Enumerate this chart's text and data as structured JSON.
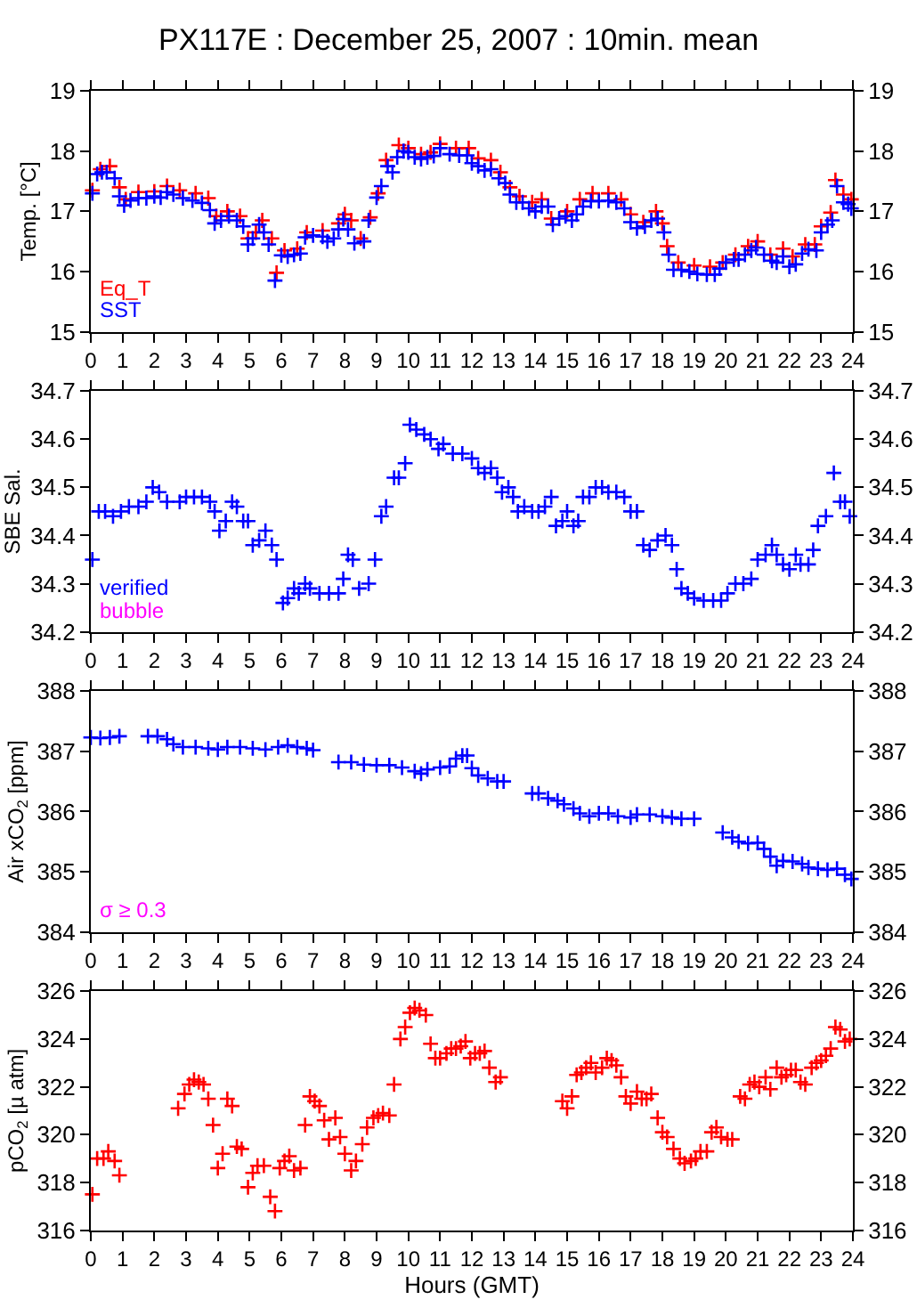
{
  "chart_data": [
    {
      "type": "scatter",
      "title": "PX117E : December 25, 2007 : 10min. mean",
      "ylabel": "Temp. [°C]",
      "xlim": [
        0,
        24
      ],
      "xticks": [
        0,
        1,
        2,
        3,
        4,
        5,
        6,
        7,
        8,
        9,
        10,
        11,
        12,
        13,
        14,
        15,
        16,
        17,
        18,
        19,
        20,
        21,
        22,
        23,
        24
      ],
      "ylim": [
        15,
        19
      ],
      "yticks": [
        15,
        16,
        17,
        18,
        19
      ],
      "y2lim": [
        15,
        19
      ],
      "y2ticks": [
        15,
        16,
        17,
        18,
        19
      ],
      "marker": "cross",
      "series": [
        {
          "name": "Eq_T",
          "color": "#ff0000",
          "x": [
            0.05,
            0.3,
            0.6,
            0.9,
            1.1,
            1.5,
            2.0,
            2.4,
            2.8,
            3.3,
            3.7,
            3.95,
            4.3,
            4.7,
            4.95,
            5.2,
            5.4,
            5.7,
            5.85,
            6.1,
            6.5,
            6.8,
            7.3,
            7.8,
            8.0,
            8.2,
            8.5,
            8.8,
            9.05,
            9.3,
            9.7,
            10.0,
            10.4,
            10.7,
            11.0,
            11.5,
            11.9,
            12.2,
            12.6,
            12.9,
            13.2,
            13.5,
            13.9,
            14.2,
            14.5,
            15.0,
            15.4,
            15.8,
            16.3,
            16.7,
            17.0,
            17.4,
            17.8,
            18.0,
            18.15,
            18.5,
            19.0,
            19.5,
            19.9,
            20.3,
            20.7,
            21.0,
            21.4,
            21.8,
            22.1,
            22.5,
            22.8,
            23.0,
            23.3,
            23.45,
            23.7,
            23.95
          ],
          "values": [
            17.35,
            17.7,
            17.75,
            17.4,
            17.2,
            17.32,
            17.33,
            17.42,
            17.35,
            17.3,
            17.22,
            16.92,
            17.0,
            16.92,
            16.55,
            16.65,
            16.85,
            16.55,
            15.98,
            16.35,
            16.38,
            16.65,
            16.68,
            16.8,
            16.95,
            16.85,
            16.55,
            16.9,
            17.3,
            17.85,
            18.1,
            18.05,
            17.95,
            17.98,
            18.12,
            18.05,
            18.05,
            17.88,
            17.85,
            17.65,
            17.4,
            17.25,
            17.15,
            17.2,
            16.88,
            17.0,
            17.2,
            17.3,
            17.3,
            17.2,
            16.95,
            16.82,
            17.0,
            16.8,
            16.42,
            16.15,
            16.1,
            16.08,
            16.15,
            16.28,
            16.42,
            16.5,
            16.28,
            16.38,
            16.25,
            16.45,
            16.45,
            16.75,
            16.98,
            17.52,
            17.28,
            17.2
          ]
        },
        {
          "name": "SST",
          "color": "#0000ff",
          "x": [
            0.05,
            0.2,
            0.35,
            0.5,
            0.75,
            0.9,
            1.05,
            1.25,
            1.5,
            1.75,
            2.0,
            2.2,
            2.4,
            2.6,
            2.9,
            3.2,
            3.5,
            3.75,
            3.9,
            4.1,
            4.35,
            4.6,
            4.8,
            4.95,
            5.1,
            5.3,
            5.45,
            5.6,
            5.8,
            6.0,
            6.2,
            6.4,
            6.6,
            6.75,
            7.0,
            7.3,
            7.45,
            7.65,
            7.8,
            7.95,
            8.1,
            8.3,
            8.6,
            8.75,
            9.0,
            9.15,
            9.35,
            9.5,
            9.65,
            9.85,
            10.0,
            10.2,
            10.4,
            10.6,
            10.8,
            11.0,
            11.3,
            11.6,
            11.85,
            12.0,
            12.2,
            12.4,
            12.6,
            12.85,
            13.05,
            13.2,
            13.4,
            13.6,
            13.8,
            14.0,
            14.2,
            14.4,
            14.55,
            14.75,
            14.95,
            15.15,
            15.3,
            15.5,
            15.75,
            16.0,
            16.3,
            16.55,
            16.8,
            17.0,
            17.2,
            17.45,
            17.65,
            17.85,
            18.05,
            18.2,
            18.35,
            18.6,
            18.85,
            19.1,
            19.4,
            19.65,
            19.8,
            20.0,
            20.25,
            20.4,
            20.6,
            20.8,
            20.95,
            21.2,
            21.45,
            21.6,
            21.8,
            22.0,
            22.2,
            22.4,
            22.6,
            22.85,
            23.0,
            23.2,
            23.35,
            23.5,
            23.7,
            23.85,
            23.95
          ],
          "values": [
            17.3,
            17.62,
            17.65,
            17.65,
            17.55,
            17.25,
            17.1,
            17.18,
            17.22,
            17.22,
            17.25,
            17.23,
            17.32,
            17.28,
            17.22,
            17.18,
            17.14,
            17.02,
            16.8,
            16.85,
            16.92,
            16.85,
            16.75,
            16.45,
            16.55,
            16.78,
            16.65,
            16.45,
            15.85,
            16.27,
            16.25,
            16.28,
            16.3,
            16.57,
            16.6,
            16.58,
            16.5,
            16.55,
            16.7,
            16.87,
            16.7,
            16.47,
            16.5,
            16.85,
            17.23,
            17.42,
            17.75,
            17.65,
            17.9,
            18.0,
            17.98,
            17.9,
            17.87,
            17.9,
            17.92,
            18.05,
            17.95,
            17.93,
            17.93,
            17.8,
            17.75,
            17.68,
            17.7,
            17.55,
            17.47,
            17.28,
            17.15,
            17.15,
            17.05,
            17.0,
            17.08,
            17.08,
            16.78,
            16.88,
            16.92,
            16.85,
            16.95,
            17.08,
            17.17,
            17.17,
            17.18,
            17.15,
            17.05,
            16.82,
            16.72,
            16.75,
            16.85,
            16.88,
            16.65,
            16.28,
            16.03,
            16.03,
            16.0,
            15.96,
            15.95,
            15.95,
            16.05,
            16.15,
            16.2,
            16.2,
            16.28,
            16.35,
            16.4,
            16.28,
            16.18,
            16.15,
            16.25,
            16.08,
            16.12,
            16.3,
            16.37,
            16.35,
            16.65,
            16.78,
            16.85,
            17.42,
            17.15,
            17.12,
            17.05
          ]
        }
      ]
    },
    {
      "type": "scatter",
      "ylabel": "SBE Sal.",
      "xlim": [
        0,
        24
      ],
      "xticks": [
        0,
        1,
        2,
        3,
        4,
        5,
        6,
        7,
        8,
        9,
        10,
        11,
        12,
        13,
        14,
        15,
        16,
        17,
        18,
        19,
        20,
        21,
        22,
        23,
        24
      ],
      "ylim": [
        34.2,
        34.7
      ],
      "yticks": [
        34.2,
        34.3,
        34.4,
        34.5,
        34.6,
        34.7
      ],
      "y2lim": [
        34.2,
        34.7
      ],
      "y2ticks": [
        34.2,
        34.3,
        34.4,
        34.5,
        34.6,
        34.7
      ],
      "marker": "cross",
      "annotations": [
        "bubble"
      ],
      "series": [
        {
          "name": "verified",
          "color": "#0000ff",
          "x": [
            0.05,
            0.25,
            0.45,
            0.7,
            0.95,
            1.2,
            1.5,
            1.75,
            1.95,
            2.15,
            2.4,
            2.8,
            3.0,
            3.25,
            3.5,
            3.75,
            3.9,
            4.05,
            4.25,
            4.45,
            4.6,
            4.8,
            4.95,
            5.1,
            5.3,
            5.5,
            5.7,
            5.85,
            6.05,
            6.2,
            6.4,
            6.55,
            6.75,
            6.9,
            7.2,
            7.5,
            7.8,
            7.95,
            8.1,
            8.25,
            8.45,
            8.75,
            8.95,
            9.15,
            9.3,
            9.55,
            9.7,
            9.9,
            10.05,
            10.25,
            10.5,
            10.7,
            10.95,
            11.1,
            11.4,
            11.7,
            12.0,
            12.2,
            12.4,
            12.6,
            12.8,
            12.95,
            13.15,
            13.3,
            13.45,
            13.65,
            13.9,
            14.1,
            14.3,
            14.5,
            14.65,
            14.85,
            15.0,
            15.2,
            15.35,
            15.5,
            15.7,
            15.9,
            16.1,
            16.3,
            16.55,
            16.8,
            17.0,
            17.2,
            17.4,
            17.6,
            17.85,
            18.1,
            18.3,
            18.45,
            18.6,
            18.8,
            19.0,
            19.3,
            19.6,
            19.85,
            20.05,
            20.3,
            20.55,
            20.8,
            21.0,
            21.25,
            21.45,
            21.6,
            21.8,
            22.0,
            22.2,
            22.35,
            22.6,
            22.75,
            22.9,
            23.15,
            23.4,
            23.6,
            23.75,
            23.9
          ],
          "values": [
            34.35,
            34.45,
            34.45,
            34.44,
            34.45,
            34.46,
            34.46,
            34.47,
            34.5,
            34.49,
            34.47,
            34.47,
            34.48,
            34.48,
            34.48,
            34.47,
            34.45,
            34.41,
            34.43,
            34.47,
            34.46,
            34.43,
            34.43,
            34.38,
            34.39,
            34.41,
            34.38,
            34.35,
            34.26,
            34.27,
            34.29,
            34.28,
            34.3,
            34.29,
            34.28,
            34.28,
            34.28,
            34.31,
            34.36,
            34.35,
            34.29,
            34.3,
            34.35,
            34.44,
            34.46,
            34.52,
            34.52,
            34.55,
            34.63,
            34.62,
            34.61,
            34.6,
            34.58,
            34.59,
            34.57,
            34.57,
            34.56,
            34.54,
            34.53,
            34.54,
            34.52,
            34.49,
            34.5,
            34.48,
            34.45,
            34.46,
            34.45,
            34.45,
            34.46,
            34.48,
            34.42,
            34.43,
            34.45,
            34.42,
            34.43,
            34.48,
            34.48,
            34.5,
            34.5,
            34.49,
            34.49,
            34.48,
            34.45,
            34.45,
            34.38,
            34.37,
            34.39,
            34.4,
            34.38,
            34.33,
            34.29,
            34.28,
            34.27,
            34.265,
            34.265,
            34.265,
            34.28,
            34.3,
            34.3,
            34.31,
            34.35,
            34.36,
            34.38,
            34.36,
            34.34,
            34.33,
            34.36,
            34.34,
            34.34,
            34.37,
            34.42,
            34.44,
            34.53,
            34.47,
            34.47,
            34.44
          ]
        }
      ]
    },
    {
      "type": "scatter",
      "ylabel": "Air xCO$_{2}$ [ppm]",
      "xlim": [
        0,
        24
      ],
      "xticks": [
        0,
        1,
        2,
        3,
        4,
        5,
        6,
        7,
        8,
        9,
        10,
        11,
        12,
        13,
        14,
        15,
        16,
        17,
        18,
        19,
        20,
        21,
        22,
        23,
        24
      ],
      "ylim": [
        384,
        388
      ],
      "yticks": [
        384,
        385,
        386,
        387,
        388
      ],
      "y2lim": [
        384,
        388
      ],
      "y2ticks": [
        384,
        385,
        386,
        387,
        388
      ],
      "marker": "cross",
      "annotations": [
        "σ ≥ 0.3"
      ],
      "series": [
        {
          "color": "#0000ff",
          "x": [
            0.0,
            0.3,
            0.6,
            0.9,
            1.8,
            2.1,
            2.4,
            2.6,
            2.9,
            3.3,
            3.7,
            4.0,
            4.3,
            4.7,
            5.1,
            5.5,
            5.9,
            6.2,
            6.5,
            6.8,
            7.0,
            7.8,
            8.2,
            8.6,
            9.0,
            9.4,
            9.8,
            10.2,
            10.4,
            10.6,
            11.0,
            11.3,
            11.5,
            11.7,
            11.85,
            12.0,
            12.2,
            12.5,
            12.8,
            13.0,
            13.9,
            14.1,
            14.4,
            14.7,
            14.9,
            15.2,
            15.4,
            15.7,
            16.0,
            16.3,
            16.6,
            17.0,
            17.2,
            17.6,
            18.0,
            18.3,
            18.6,
            19.0,
            19.9,
            20.2,
            20.4,
            20.7,
            21.0,
            21.2,
            21.4,
            21.6,
            21.8,
            22.1,
            22.4,
            22.6,
            22.9,
            23.2,
            23.5,
            23.75,
            23.95
          ],
          "values": [
            387.23,
            387.22,
            387.23,
            387.25,
            387.25,
            387.25,
            387.2,
            387.12,
            387.07,
            387.07,
            387.05,
            387.03,
            387.07,
            387.07,
            387.05,
            387.03,
            387.07,
            387.1,
            387.07,
            387.05,
            387.02,
            386.82,
            386.82,
            386.78,
            386.77,
            386.77,
            386.73,
            386.67,
            386.63,
            386.7,
            386.73,
            386.75,
            386.88,
            386.93,
            386.93,
            386.72,
            386.6,
            386.55,
            386.5,
            386.5,
            386.3,
            386.3,
            386.22,
            386.18,
            386.12,
            386.05,
            385.97,
            385.92,
            385.97,
            385.97,
            385.92,
            385.9,
            385.95,
            385.95,
            385.92,
            385.9,
            385.88,
            385.88,
            385.65,
            385.57,
            385.5,
            385.47,
            385.48,
            385.38,
            385.25,
            385.1,
            385.18,
            385.17,
            385.13,
            385.07,
            385.05,
            385.03,
            385.05,
            384.95,
            384.88
          ]
        }
      ]
    },
    {
      "type": "scatter",
      "xlabel": "Hours (GMT)",
      "ylabel": "pCO$_{2}$ [µ atm]",
      "xlim": [
        0,
        24
      ],
      "xticks": [
        0,
        1,
        2,
        3,
        4,
        5,
        6,
        7,
        8,
        9,
        10,
        11,
        12,
        13,
        14,
        15,
        16,
        17,
        18,
        19,
        20,
        21,
        22,
        23,
        24
      ],
      "ylim": [
        316,
        326
      ],
      "yticks": [
        316,
        318,
        320,
        322,
        324,
        326
      ],
      "y2lim": [
        316,
        326
      ],
      "y2ticks": [
        316,
        318,
        320,
        322,
        324,
        326
      ],
      "marker": "cross",
      "series": [
        {
          "color": "#ff0000",
          "x": [
            0.05,
            0.2,
            0.4,
            0.55,
            0.75,
            0.9,
            2.75,
            2.95,
            3.1,
            3.25,
            3.4,
            3.55,
            3.7,
            3.85,
            4.0,
            4.15,
            4.3,
            4.45,
            4.6,
            4.75,
            4.95,
            5.1,
            5.25,
            5.45,
            5.65,
            5.8,
            5.95,
            6.1,
            6.25,
            6.4,
            6.6,
            6.75,
            6.9,
            7.05,
            7.2,
            7.35,
            7.5,
            7.7,
            7.85,
            8.0,
            8.2,
            8.35,
            8.55,
            8.7,
            8.9,
            9.05,
            9.2,
            9.4,
            9.55,
            9.75,
            9.9,
            10.05,
            10.2,
            10.35,
            10.55,
            10.7,
            10.85,
            11.0,
            11.2,
            11.35,
            11.5,
            11.65,
            11.8,
            11.95,
            12.1,
            12.25,
            12.4,
            12.55,
            12.75,
            12.9,
            14.85,
            15.0,
            15.15,
            15.3,
            15.45,
            15.6,
            15.75,
            15.9,
            16.1,
            16.25,
            16.4,
            16.55,
            16.7,
            16.85,
            17.0,
            17.2,
            17.35,
            17.5,
            17.65,
            17.85,
            18.0,
            18.15,
            18.35,
            18.55,
            18.7,
            18.9,
            19.05,
            19.2,
            19.4,
            19.55,
            19.7,
            19.85,
            20.05,
            20.2,
            20.45,
            20.6,
            20.75,
            20.9,
            21.05,
            21.25,
            21.4,
            21.6,
            21.75,
            21.9,
            22.05,
            22.2,
            22.35,
            22.5,
            22.7,
            22.85,
            23.0,
            23.15,
            23.3,
            23.45,
            23.6,
            23.75,
            23.9
          ],
          "values": [
            317.5,
            319.0,
            319.0,
            319.3,
            318.9,
            318.3,
            321.1,
            321.7,
            322.1,
            322.3,
            322.2,
            322.1,
            321.5,
            320.4,
            318.6,
            319.2,
            321.5,
            321.2,
            319.5,
            319.4,
            317.8,
            318.4,
            318.7,
            318.7,
            317.4,
            316.8,
            318.6,
            318.9,
            319.1,
            318.5,
            318.6,
            320.4,
            321.6,
            321.4,
            321.2,
            320.6,
            319.8,
            320.7,
            319.9,
            319.2,
            318.5,
            318.9,
            319.6,
            320.3,
            320.7,
            320.8,
            320.9,
            320.8,
            322.1,
            324.0,
            324.5,
            325.1,
            325.3,
            325.2,
            325.0,
            323.8,
            323.2,
            323.2,
            323.4,
            323.6,
            323.6,
            323.7,
            323.9,
            323.2,
            323.4,
            323.4,
            323.5,
            322.8,
            322.2,
            322.4,
            321.4,
            321.1,
            321.6,
            322.5,
            322.6,
            322.8,
            323.0,
            322.6,
            322.8,
            323.2,
            323.1,
            322.9,
            322.4,
            321.6,
            321.3,
            321.8,
            321.5,
            321.5,
            321.7,
            320.7,
            320.1,
            319.9,
            319.4,
            319.0,
            318.8,
            318.9,
            319.0,
            319.3,
            319.3,
            320.1,
            320.3,
            319.9,
            319.8,
            319.8,
            321.6,
            321.5,
            322.1,
            322.2,
            322.0,
            322.4,
            321.9,
            322.8,
            322.4,
            322.5,
            322.7,
            322.7,
            322.2,
            322.1,
            322.8,
            323.0,
            323.1,
            323.3,
            323.6,
            324.5,
            324.4,
            323.9,
            324.0
          ]
        }
      ]
    }
  ]
}
